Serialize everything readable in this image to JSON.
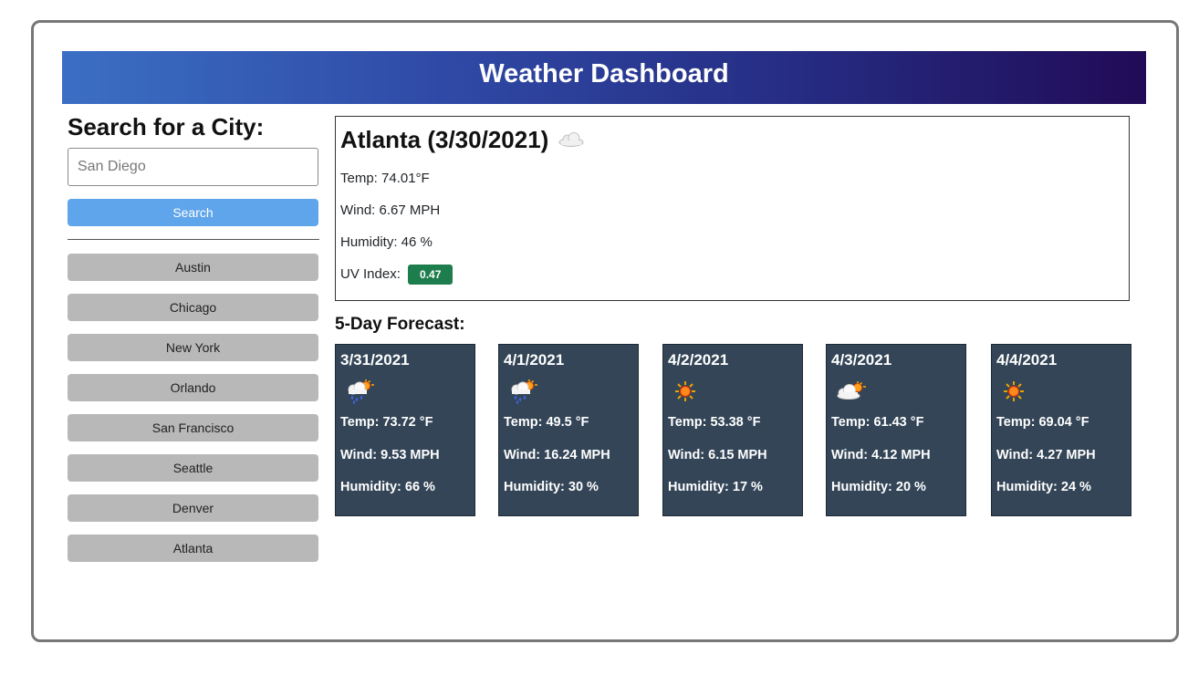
{
  "header": {
    "title": "Weather Dashboard"
  },
  "sidebar": {
    "heading": "Search for a City:",
    "search_placeholder": "San Diego",
    "search_button": "Search",
    "cities": [
      "Austin",
      "Chicago",
      "New York",
      "Orlando",
      "San Francisco",
      "Seattle",
      "Denver",
      "Atlanta"
    ]
  },
  "current": {
    "title": "Atlanta (3/30/2021)",
    "icon": "cloud-icon",
    "temp": "Temp: 74.01°F",
    "wind": "Wind: 6.67 MPH",
    "humidity": "Humidity: 46 %",
    "uv_label": "UV Index:",
    "uv_value": "0.47",
    "uv_color": "#1e7d4d"
  },
  "forecast": {
    "title": "5-Day Forecast:",
    "card_color": "#334557",
    "days": [
      {
        "date": "3/31/2021",
        "icon": "rain-cloud-sun-icon",
        "temp": "Temp: 73.72 °F",
        "wind": "Wind: 9.53 MPH",
        "humidity": "Humidity: 66 %"
      },
      {
        "date": "4/1/2021",
        "icon": "rain-cloud-sun-icon",
        "temp": "Temp: 49.5 °F",
        "wind": "Wind: 16.24 MPH",
        "humidity": "Humidity: 30 %"
      },
      {
        "date": "4/2/2021",
        "icon": "sun-icon",
        "temp": "Temp: 53.38 °F",
        "wind": "Wind: 6.15 MPH",
        "humidity": "Humidity: 17 %"
      },
      {
        "date": "4/3/2021",
        "icon": "cloud-sun-icon",
        "temp": "Temp: 61.43 °F",
        "wind": "Wind: 4.12 MPH",
        "humidity": "Humidity: 20 %"
      },
      {
        "date": "4/4/2021",
        "icon": "sun-icon",
        "temp": "Temp: 69.04 °F",
        "wind": "Wind: 4.27 MPH",
        "humidity": "Humidity: 24 %"
      }
    ]
  },
  "colors": {
    "header_gradient_start": "#3b6fc4",
    "header_gradient_end": "#210b57",
    "search_button": "#5fa5eb",
    "city_button": "#b8b8b8"
  }
}
